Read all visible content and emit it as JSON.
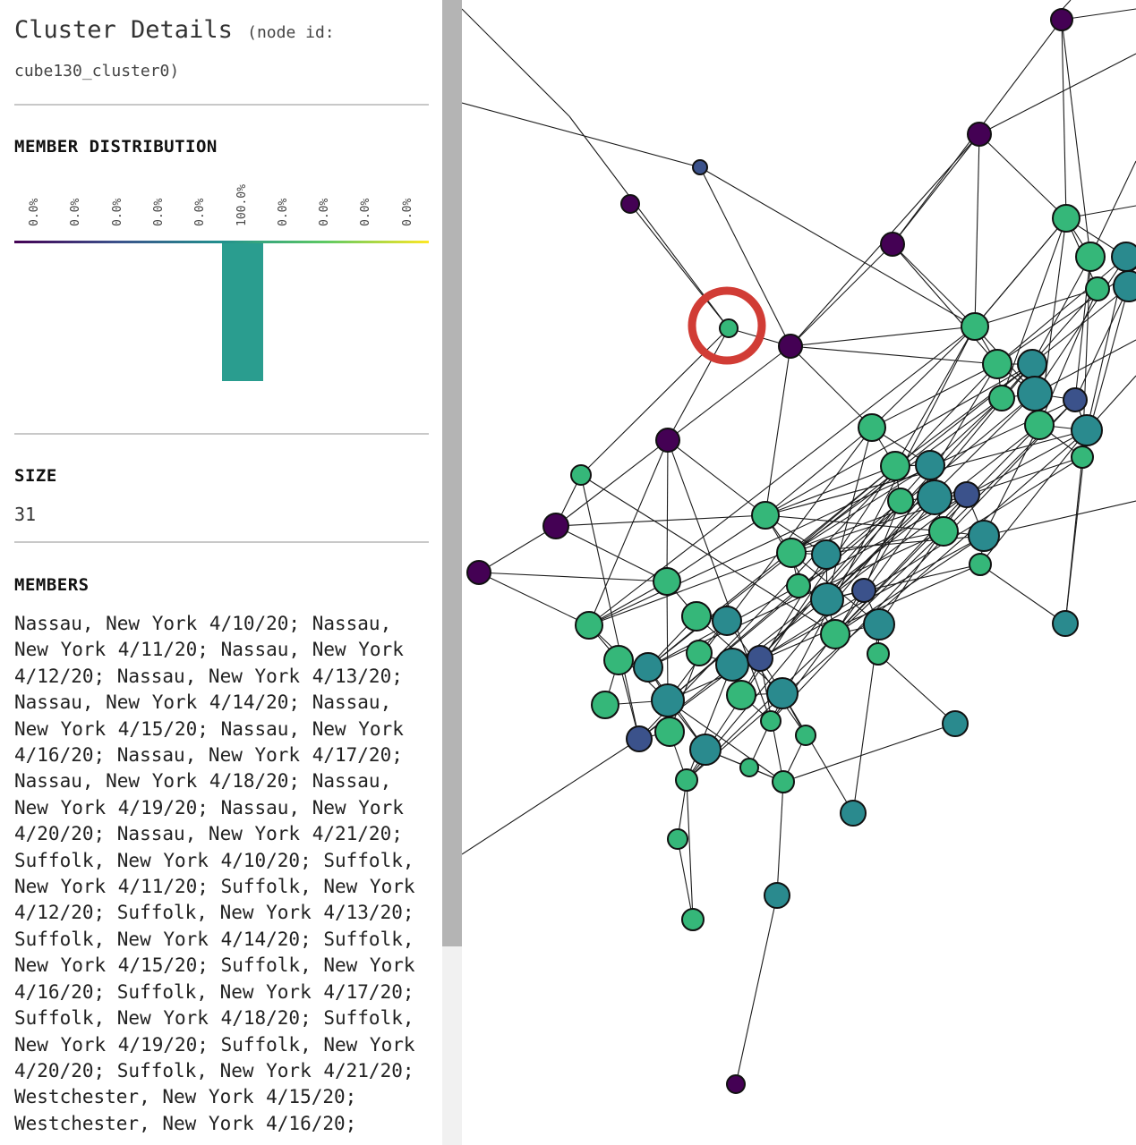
{
  "panel": {
    "title": "Cluster Details",
    "node_id_label": "(node id:",
    "node_id_value": "cube130_cluster0)",
    "distribution": {
      "heading": "MEMBER DISTRIBUTION",
      "bins": [
        {
          "label": "0.0%",
          "value": 0.0
        },
        {
          "label": "0.0%",
          "value": 0.0
        },
        {
          "label": "0.0%",
          "value": 0.0
        },
        {
          "label": "0.0%",
          "value": 0.0
        },
        {
          "label": "0.0%",
          "value": 0.0
        },
        {
          "label": "100.0%",
          "value": 1.0
        },
        {
          "label": "0.0%",
          "value": 0.0
        },
        {
          "label": "0.0%",
          "value": 0.0
        },
        {
          "label": "0.0%",
          "value": 0.0
        },
        {
          "label": "0.0%",
          "value": 0.0
        }
      ],
      "bar_color": "#2a9d8f",
      "scale_colors": [
        "#440154",
        "#3b528b",
        "#21908d",
        "#5dc963",
        "#fde725"
      ]
    },
    "size": {
      "heading": "SIZE",
      "value": "31"
    },
    "members": {
      "heading": "MEMBERS",
      "text": "Nassau, New York 4/10/20; Nassau, New York 4/11/20; Nassau, New York 4/12/20; Nassau, New York 4/13/20; Nassau, New York 4/14/20; Nassau, New York 4/15/20; Nassau, New York 4/16/20; Nassau, New York 4/17/20; Nassau, New York 4/18/20; Nassau, New York 4/19/20; Nassau, New York 4/20/20; Nassau, New York 4/21/20; Suffolk, New York 4/10/20; Suffolk, New York 4/11/20; Suffolk, New York 4/12/20; Suffolk, New York 4/13/20; Suffolk, New York 4/14/20; Suffolk, New York 4/15/20; Suffolk, New York 4/16/20; Suffolk, New York 4/17/20; Suffolk, New York 4/18/20; Suffolk, New York 4/19/20; Suffolk, New York 4/20/20; Suffolk, New York 4/21/20; Westchester, New York 4/15/20; Westchester, New York 4/16/20;"
    }
  },
  "graph": {
    "node_palette": {
      "purple": "#440154",
      "indigo": "#3b528b",
      "teal": "#2a8a8e",
      "green": "#35b779"
    },
    "selection_ring_color": "#d13c35"
  }
}
